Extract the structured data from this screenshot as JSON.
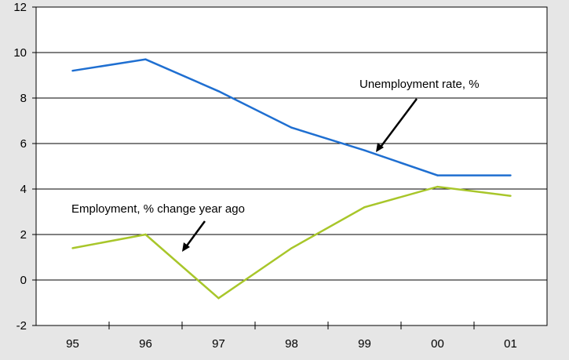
{
  "chart_data": {
    "type": "line",
    "categories": [
      "95",
      "96",
      "97",
      "98",
      "99",
      "00",
      "01"
    ],
    "ylim": [
      -2,
      12
    ],
    "yticks": [
      "-2",
      "0",
      "2",
      "4",
      "6",
      "8",
      "10",
      "12"
    ],
    "grid": true,
    "background": "#e6e6e6",
    "series": [
      {
        "name": "Unemployment rate, %",
        "color": "#1f6fd1",
        "x": [
          95.0,
          96.0,
          97.0,
          98.0,
          99.0,
          100.0,
          101.0
        ],
        "values": [
          9.2,
          9.7,
          8.3,
          6.7,
          5.7,
          4.6,
          4.6
        ]
      },
      {
        "name": "Employment, % change year ago",
        "color": "#a8c62a",
        "x": [
          95.0,
          96.0,
          97.0,
          98.0,
          99.0,
          100.0,
          101.0
        ],
        "values": [
          1.4,
          2.0,
          -0.8,
          1.4,
          3.2,
          4.1,
          3.7
        ]
      }
    ]
  }
}
